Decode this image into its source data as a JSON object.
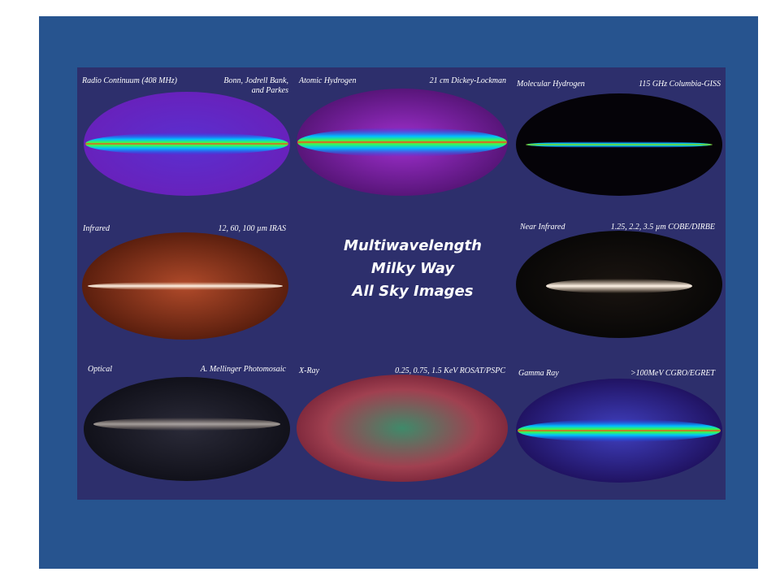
{
  "title": [
    "Multiwavelength",
    "Milky Way",
    "All  Sky Images"
  ],
  "panels": [
    {
      "label": "Radio Continuum (408 MHz)",
      "source": [
        "Bonn, Jodrell Bank,",
        "and Parkes"
      ]
    },
    {
      "label": "Atomic Hydrogen",
      "source": [
        "21 cm Dickey-Lockman"
      ]
    },
    {
      "label": "Molecular Hydrogen",
      "source": [
        "115 GHz  Columbia-GISS"
      ]
    },
    {
      "label": "Infrared",
      "source": [
        "12, 60, 100 µm   IRAS"
      ]
    },
    {
      "label": "Near Infrared",
      "source": [
        "1.25, 2.2, 3.5 µm  COBE/DIRBE"
      ]
    },
    {
      "label": "Optical",
      "source": [
        "A. Mellinger Photomosaic"
      ]
    },
    {
      "label": "X-Ray",
      "source": [
        "0.25, 0.75, 1.5  KeV ROSAT/PSPC"
      ]
    },
    {
      "label": "Gamma Ray",
      "source": [
        ">100MeV  CGRO/EGRET"
      ]
    }
  ]
}
